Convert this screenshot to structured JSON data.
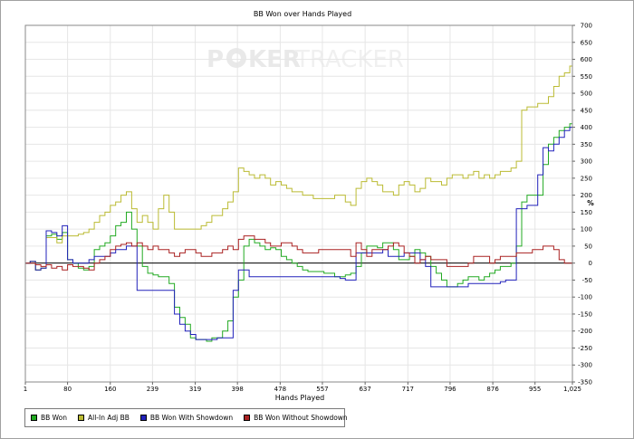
{
  "watermark": {
    "left": "P",
    "right": "KER",
    "brand2": "TRACKER"
  },
  "chart_data": {
    "type": "line",
    "title": "BB Won over Hands Played",
    "xlabel": "Hands Played",
    "ylabel": "%",
    "xlim": [
      1,
      1025
    ],
    "ylim": [
      -350,
      700
    ],
    "x_ticks": [
      1,
      80,
      160,
      239,
      319,
      398,
      478,
      557,
      637,
      717,
      796,
      876,
      955,
      "1,025"
    ],
    "y_ticks": [
      -350,
      -300,
      -250,
      -200,
      -150,
      -100,
      -50,
      0,
      50,
      100,
      150,
      200,
      250,
      300,
      350,
      400,
      450,
      500,
      550,
      600,
      650,
      700
    ],
    "grid": true,
    "legend_position": "bottom-left",
    "series": [
      {
        "name": "BB Won",
        "color": "#22aa22",
        "x": [
          1,
          10,
          20,
          30,
          40,
          50,
          60,
          70,
          80,
          90,
          100,
          110,
          120,
          130,
          140,
          150,
          160,
          170,
          180,
          190,
          200,
          210,
          220,
          230,
          240,
          250,
          260,
          270,
          280,
          290,
          300,
          310,
          320,
          330,
          340,
          350,
          360,
          370,
          380,
          390,
          400,
          410,
          420,
          430,
          440,
          450,
          460,
          470,
          480,
          490,
          500,
          510,
          520,
          530,
          540,
          550,
          560,
          570,
          580,
          590,
          600,
          610,
          620,
          630,
          640,
          650,
          660,
          670,
          680,
          690,
          700,
          710,
          720,
          730,
          740,
          750,
          760,
          770,
          780,
          790,
          800,
          810,
          820,
          830,
          840,
          850,
          860,
          870,
          880,
          890,
          900,
          910,
          920,
          930,
          940,
          950,
          960,
          970,
          980,
          990,
          1000,
          1010,
          1020,
          1025
        ],
        "y": [
          0,
          5,
          -20,
          -15,
          80,
          85,
          70,
          90,
          10,
          0,
          -15,
          -20,
          -10,
          40,
          50,
          60,
          80,
          110,
          120,
          150,
          100,
          50,
          -10,
          -30,
          -35,
          -40,
          -40,
          -60,
          -130,
          -160,
          -180,
          -220,
          -225,
          -225,
          -230,
          -220,
          -220,
          -200,
          -170,
          -100,
          -50,
          50,
          70,
          60,
          50,
          40,
          45,
          40,
          20,
          10,
          0,
          -10,
          -20,
          -25,
          -25,
          -25,
          -30,
          -30,
          -40,
          -40,
          -35,
          -30,
          -10,
          30,
          50,
          50,
          45,
          60,
          60,
          40,
          10,
          10,
          20,
          40,
          30,
          20,
          -10,
          -30,
          -50,
          -70,
          -70,
          -60,
          -50,
          -40,
          -40,
          -50,
          -40,
          -30,
          -20,
          -10,
          -10,
          0,
          50,
          180,
          200,
          200,
          200,
          290,
          350,
          370,
          390,
          400,
          410,
          450
        ]
      },
      {
        "name": "All-In Adj BB",
        "color": "#bbbb33",
        "x": [
          1,
          10,
          20,
          30,
          40,
          50,
          60,
          70,
          80,
          90,
          100,
          110,
          120,
          130,
          140,
          150,
          160,
          170,
          180,
          190,
          200,
          210,
          220,
          230,
          240,
          250,
          260,
          270,
          280,
          290,
          300,
          310,
          320,
          330,
          340,
          350,
          360,
          370,
          380,
          390,
          400,
          410,
          420,
          430,
          440,
          450,
          460,
          470,
          480,
          490,
          500,
          510,
          520,
          530,
          540,
          550,
          560,
          570,
          580,
          590,
          600,
          610,
          620,
          630,
          640,
          650,
          660,
          670,
          680,
          690,
          700,
          710,
          720,
          730,
          740,
          750,
          760,
          770,
          780,
          790,
          800,
          810,
          820,
          830,
          840,
          850,
          860,
          870,
          880,
          890,
          900,
          910,
          920,
          930,
          940,
          950,
          960,
          970,
          980,
          990,
          1000,
          1010,
          1020,
          1025
        ],
        "y": [
          0,
          5,
          -20,
          -15,
          75,
          75,
          60,
          80,
          80,
          80,
          85,
          90,
          100,
          120,
          140,
          150,
          170,
          180,
          200,
          210,
          160,
          120,
          140,
          120,
          100,
          160,
          200,
          150,
          100,
          100,
          100,
          100,
          100,
          110,
          120,
          140,
          140,
          160,
          180,
          210,
          280,
          270,
          260,
          250,
          260,
          250,
          230,
          240,
          230,
          220,
          210,
          210,
          200,
          200,
          190,
          190,
          190,
          190,
          200,
          200,
          180,
          170,
          220,
          240,
          250,
          240,
          230,
          210,
          210,
          200,
          230,
          240,
          230,
          210,
          220,
          250,
          240,
          240,
          230,
          250,
          260,
          260,
          250,
          260,
          270,
          250,
          260,
          250,
          260,
          270,
          270,
          280,
          300,
          450,
          460,
          460,
          470,
          470,
          490,
          520,
          550,
          560,
          580,
          600
        ]
      },
      {
        "name": "BB Won With Showdown",
        "color": "#2222bb",
        "x": [
          1,
          10,
          20,
          30,
          40,
          50,
          60,
          70,
          80,
          90,
          100,
          110,
          120,
          130,
          140,
          150,
          160,
          170,
          180,
          190,
          200,
          210,
          220,
          230,
          240,
          250,
          260,
          270,
          280,
          290,
          300,
          310,
          320,
          330,
          340,
          350,
          360,
          370,
          380,
          390,
          400,
          410,
          420,
          430,
          440,
          450,
          460,
          470,
          480,
          490,
          500,
          510,
          520,
          530,
          540,
          550,
          560,
          570,
          580,
          590,
          600,
          610,
          620,
          630,
          640,
          650,
          660,
          670,
          680,
          690,
          700,
          710,
          720,
          730,
          740,
          750,
          760,
          770,
          780,
          790,
          800,
          810,
          820,
          830,
          840,
          850,
          860,
          870,
          880,
          890,
          900,
          910,
          920,
          930,
          940,
          950,
          960,
          970,
          980,
          990,
          1000,
          1010,
          1020,
          1025
        ],
        "y": [
          0,
          5,
          -20,
          -15,
          95,
          90,
          80,
          110,
          10,
          0,
          0,
          0,
          10,
          20,
          20,
          20,
          30,
          40,
          40,
          50,
          50,
          -80,
          -80,
          -80,
          -80,
          -80,
          -80,
          -80,
          -150,
          -180,
          -200,
          -210,
          -225,
          -225,
          -225,
          -225,
          -220,
          -220,
          -220,
          -80,
          -20,
          -20,
          -40,
          -40,
          -40,
          -40,
          -40,
          -40,
          -40,
          -40,
          -40,
          -40,
          -40,
          -40,
          -40,
          -40,
          -40,
          -40,
          -40,
          -45,
          -50,
          -50,
          30,
          30,
          30,
          30,
          30,
          40,
          20,
          20,
          20,
          30,
          30,
          30,
          10,
          -10,
          -70,
          -70,
          -70,
          -70,
          -70,
          -70,
          -70,
          -60,
          -60,
          -60,
          -60,
          -60,
          -60,
          -55,
          -50,
          -50,
          160,
          160,
          170,
          170,
          260,
          340,
          330,
          350,
          370,
          390,
          400,
          400
        ]
      },
      {
        "name": "BB Won Without Showdown",
        "color": "#aa2222",
        "x": [
          1,
          10,
          20,
          30,
          40,
          50,
          60,
          70,
          80,
          90,
          100,
          110,
          120,
          130,
          140,
          150,
          160,
          170,
          180,
          190,
          200,
          210,
          220,
          230,
          240,
          250,
          260,
          270,
          280,
          290,
          300,
          310,
          320,
          330,
          340,
          350,
          360,
          370,
          380,
          390,
          400,
          410,
          420,
          430,
          440,
          450,
          460,
          470,
          480,
          490,
          500,
          510,
          520,
          530,
          540,
          550,
          560,
          570,
          580,
          590,
          600,
          610,
          620,
          630,
          640,
          650,
          660,
          670,
          680,
          690,
          700,
          710,
          720,
          730,
          740,
          750,
          760,
          770,
          780,
          790,
          800,
          810,
          820,
          830,
          840,
          850,
          860,
          870,
          880,
          890,
          900,
          910,
          920,
          930,
          940,
          950,
          960,
          970,
          980,
          990,
          1000,
          1010,
          1020,
          1025
        ],
        "y": [
          0,
          0,
          -5,
          -10,
          -5,
          -15,
          -10,
          -20,
          -5,
          -10,
          -10,
          -15,
          -20,
          0,
          10,
          20,
          40,
          50,
          55,
          60,
          50,
          60,
          50,
          40,
          50,
          40,
          40,
          30,
          20,
          30,
          40,
          40,
          30,
          20,
          20,
          30,
          30,
          40,
          50,
          40,
          70,
          80,
          80,
          70,
          70,
          60,
          50,
          50,
          60,
          60,
          50,
          40,
          30,
          30,
          30,
          40,
          40,
          40,
          40,
          40,
          40,
          20,
          60,
          40,
          20,
          40,
          40,
          40,
          50,
          60,
          50,
          30,
          20,
          0,
          10,
          20,
          10,
          10,
          10,
          -10,
          -10,
          -10,
          -10,
          0,
          20,
          20,
          20,
          0,
          10,
          20,
          20,
          20,
          30,
          30,
          30,
          40,
          40,
          50,
          50,
          40,
          10,
          0,
          0,
          60
        ]
      }
    ]
  }
}
